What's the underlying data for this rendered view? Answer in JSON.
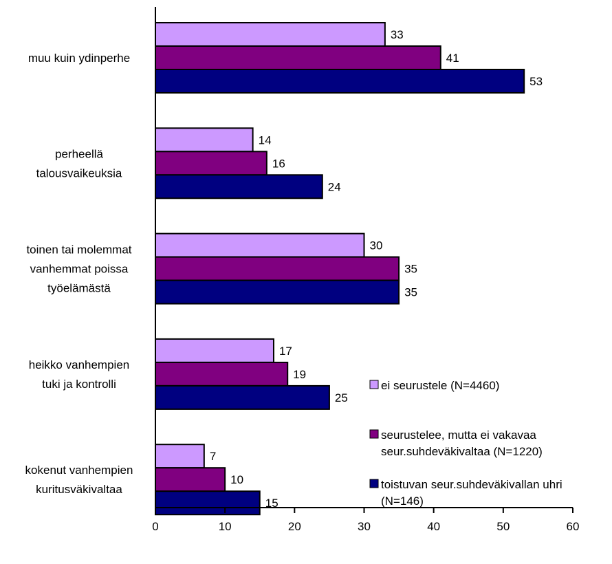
{
  "chart_data": {
    "type": "bar",
    "orientation": "horizontal",
    "categories": [
      [
        "muu kuin ydinperhe"
      ],
      [
        "perheellä",
        "talousvaikeuksia"
      ],
      [
        "toinen tai molemmat",
        "vanhemmat poissa",
        "työelämästä"
      ],
      [
        "heikko vanhempien",
        "tuki ja kontrolli"
      ],
      [
        "kokenut vanhempien",
        "kuritusväkivaltaa"
      ]
    ],
    "series": [
      {
        "name": "ei seurustele (N=4460)",
        "color": "#cc99ff",
        "values": [
          33,
          14,
          30,
          17,
          7
        ]
      },
      {
        "name": "seurustelee, mutta ei vakavaa seur.suhdeväkivaltaa (N=1220)",
        "color": "#800080",
        "values": [
          41,
          16,
          35,
          19,
          10
        ]
      },
      {
        "name": "toistuvan seur.suhdeväkivallan uhri (N=146)",
        "color": "#000080",
        "values": [
          53,
          24,
          35,
          25,
          15
        ]
      }
    ],
    "legend": [
      {
        "lines": [
          "ei seurustele (N=4460)"
        ],
        "color": "#cc99ff"
      },
      {
        "lines": [
          "seurustelee, mutta ei vakavaa",
          "seur.suhdeväkivaltaa (N=1220)"
        ],
        "color": "#800080"
      },
      {
        "lines": [
          "toistuvan seur.suhdeväkivallan uhri",
          "(N=146)"
        ],
        "color": "#000080"
      }
    ],
    "xlim": [
      0,
      60
    ],
    "xticks": [
      0,
      10,
      20,
      30,
      40,
      50,
      60
    ],
    "grid": false,
    "legend_position": "right"
  }
}
